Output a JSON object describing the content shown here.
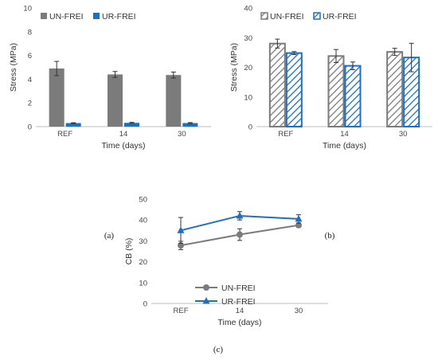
{
  "chart_data": [
    {
      "type": "bar",
      "panel_label": "(a)",
      "categories": [
        "REF",
        "14",
        "30"
      ],
      "xlabel": "Time (days)",
      "ylabel": "Stress (MPa)",
      "ylim": [
        0,
        10
      ],
      "yticks": [
        0,
        2,
        4,
        6,
        8,
        10
      ],
      "legend_position": "top-left",
      "series": [
        {
          "name": "UN-FREI",
          "values": [
            4.9,
            4.4,
            4.35
          ],
          "errors": [
            0.6,
            0.25,
            0.25
          ],
          "color": "#7b7b7b",
          "fill": "solid"
        },
        {
          "name": "UR-FREI",
          "values": [
            0.3,
            0.32,
            0.3
          ],
          "errors": [
            0.03,
            0.04,
            0.04
          ],
          "color": "#1f6fbf",
          "fill": "solid"
        }
      ]
    },
    {
      "type": "bar",
      "panel_label": "(b)",
      "categories": [
        "REF",
        "14",
        "30"
      ],
      "xlabel": "Time (days)",
      "ylabel": "Stress (MPa)",
      "ylim": [
        0,
        40
      ],
      "yticks": [
        0,
        10,
        20,
        30,
        40
      ],
      "legend_position": "top-left",
      "series": [
        {
          "name": "UN-FREI",
          "values": [
            28.0,
            23.8,
            25.2
          ],
          "errors": [
            1.5,
            2.2,
            1.2
          ],
          "color": "#7b7b7b",
          "fill": "hatched"
        },
        {
          "name": "UR-FREI",
          "values": [
            24.8,
            20.5,
            23.3
          ],
          "errors": [
            0.5,
            1.3,
            4.8
          ],
          "color": "#1f6fbf",
          "fill": "hatched"
        }
      ]
    },
    {
      "type": "line",
      "panel_label": "(c)",
      "categories": [
        "REF",
        "14",
        "30"
      ],
      "xlabel": "Time (days)",
      "ylabel": "CB (%)",
      "ylim": [
        0,
        50
      ],
      "yticks": [
        0,
        10,
        20,
        30,
        40,
        50
      ],
      "legend_position": "bottom-right",
      "series": [
        {
          "name": "UN-FREI",
          "values": [
            27.8,
            33.0,
            37.5
          ],
          "errors": [
            2.0,
            2.8,
            1.0
          ],
          "color": "#7b7b7b",
          "marker": "circle"
        },
        {
          "name": "UR-FREI",
          "values": [
            35.0,
            42.0,
            40.5
          ],
          "errors": [
            6.2,
            2.0,
            2.0
          ],
          "color": "#1f6fbf",
          "marker": "triangle"
        }
      ]
    }
  ]
}
